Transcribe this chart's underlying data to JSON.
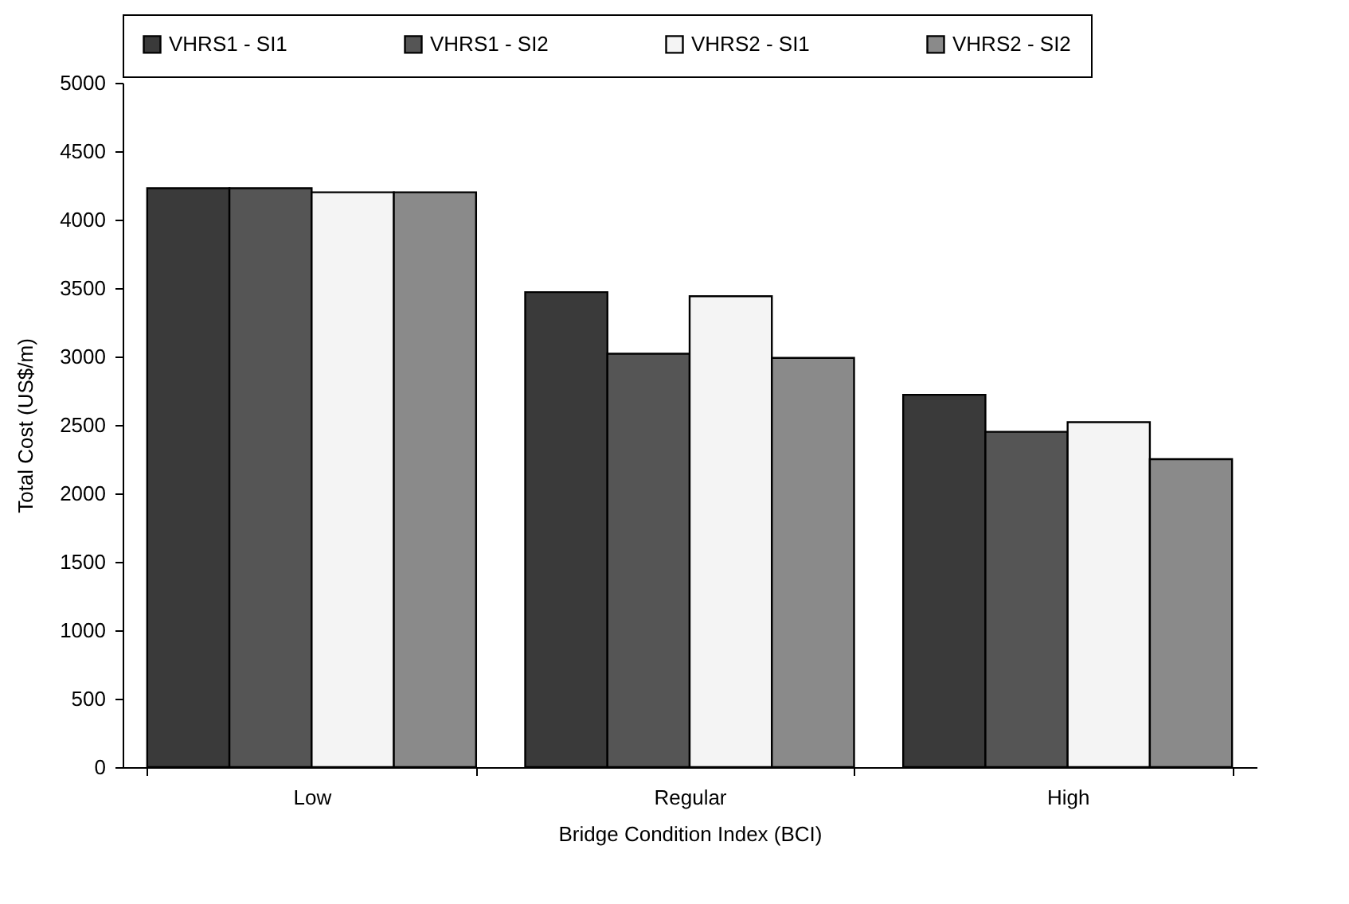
{
  "chart_data": {
    "type": "bar",
    "xlabel": "Bridge Condition Index (BCI)",
    "ylabel": "Total Cost (US$/m)",
    "categories": [
      "Low",
      "Regular",
      "High"
    ],
    "series": [
      {
        "name": "VHRS1 - SI1",
        "color": "#3a3a3a",
        "values": [
          4230,
          3470,
          2720
        ]
      },
      {
        "name": "VHRS1 - SI2",
        "color": "#555555",
        "values": [
          4230,
          3020,
          2450
        ]
      },
      {
        "name": "VHRS2 - SI1",
        "color": "#f4f4f4",
        "values": [
          4200,
          3440,
          2520
        ]
      },
      {
        "name": "VHRS2 - SI2",
        "color": "#8a8a8a",
        "values": [
          4200,
          2990,
          2250
        ]
      }
    ],
    "ylim": [
      0,
      5000
    ],
    "yticks": [
      0,
      500,
      1000,
      1500,
      2000,
      2500,
      3000,
      3500,
      4000,
      4500,
      5000
    ],
    "grid": false,
    "legend": "top"
  }
}
